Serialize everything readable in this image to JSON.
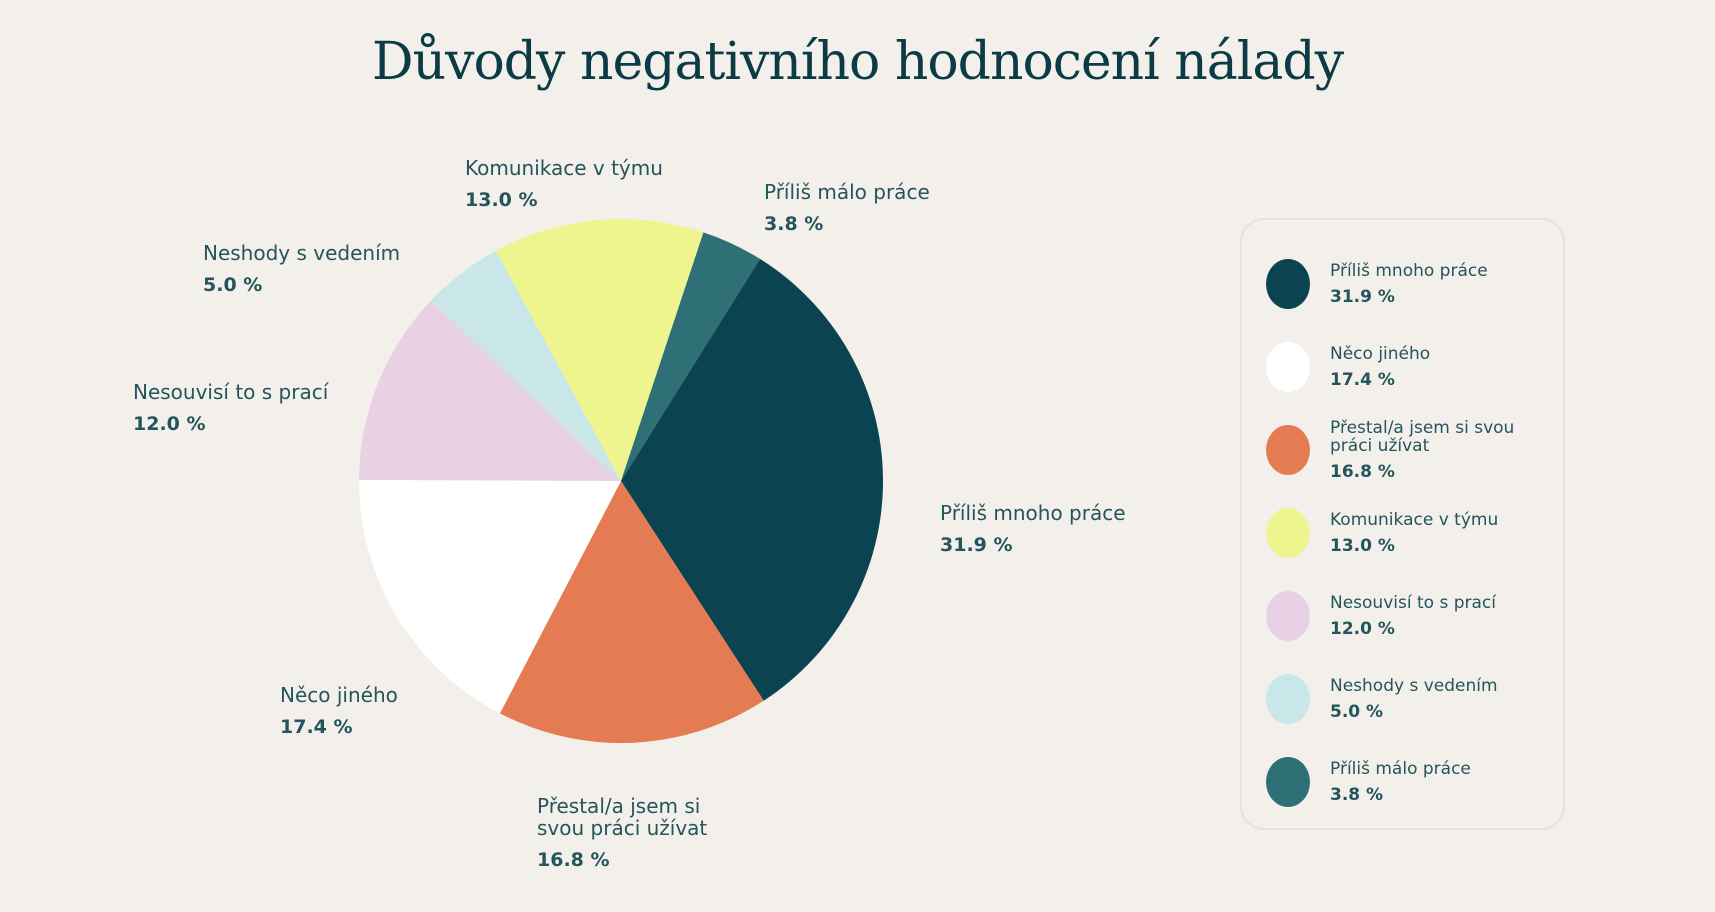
{
  "chart_data": {
    "type": "pie",
    "title": "Důvody negativního hodnocení nálady",
    "categories": [
      "Komunikace v týmu",
      "Příliš málo práce",
      "Příliš mnoho práce",
      "Přestal/a jsem si svou práci užívat",
      "Něco jiného",
      "Nesouvisí to s prací",
      "Neshody s vedením"
    ],
    "values": [
      13.0,
      3.8,
      31.9,
      16.8,
      17.4,
      12.0,
      5.0
    ],
    "value_labels": [
      "13.0 %",
      "3.8 %",
      "31.9 %",
      "16.8 %",
      "17.4 %",
      "12.0 %",
      "5.0 %"
    ],
    "colors": [
      "#eef58f",
      "#2e7076",
      "#0b4450",
      "#e47b52",
      "#ffffff",
      "#e8d1e4",
      "#c9e7e8"
    ],
    "legend": {
      "categories": [
        "Příliš mnoho práce",
        "Něco jiného",
        "Přestal/a jsem si svou práci užívat",
        "Komunikace v týmu",
        "Nesouvisí to s prací",
        "Neshody s vedením",
        "Příliš málo práce"
      ],
      "values": [
        31.9,
        17.4,
        16.8,
        13.0,
        12.0,
        5.0,
        3.8
      ],
      "value_labels": [
        "31.9 %",
        "17.4 %",
        "16.8 %",
        "13.0 %",
        "12.0 %",
        "5.0 %",
        "3.8 %"
      ],
      "colors": [
        "#0b4450",
        "#ffffff",
        "#e47b52",
        "#eef58f",
        "#e8d1e4",
        "#c9e7e8",
        "#2e7076"
      ]
    }
  }
}
